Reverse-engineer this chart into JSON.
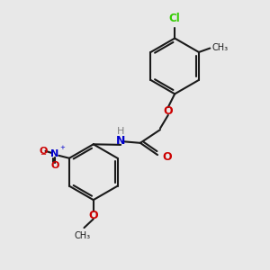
{
  "bg_color": "#e8e8e8",
  "bond_color": "#1a1a1a",
  "O_color": "#cc0000",
  "N_color": "#0000cc",
  "Cl_color": "#33cc00",
  "H_color": "#808080",
  "line_width": 1.5,
  "font_size": 8,
  "figsize": [
    3.0,
    3.0
  ],
  "dpi": 100,
  "xlim": [
    0,
    10
  ],
  "ylim": [
    0,
    10
  ]
}
